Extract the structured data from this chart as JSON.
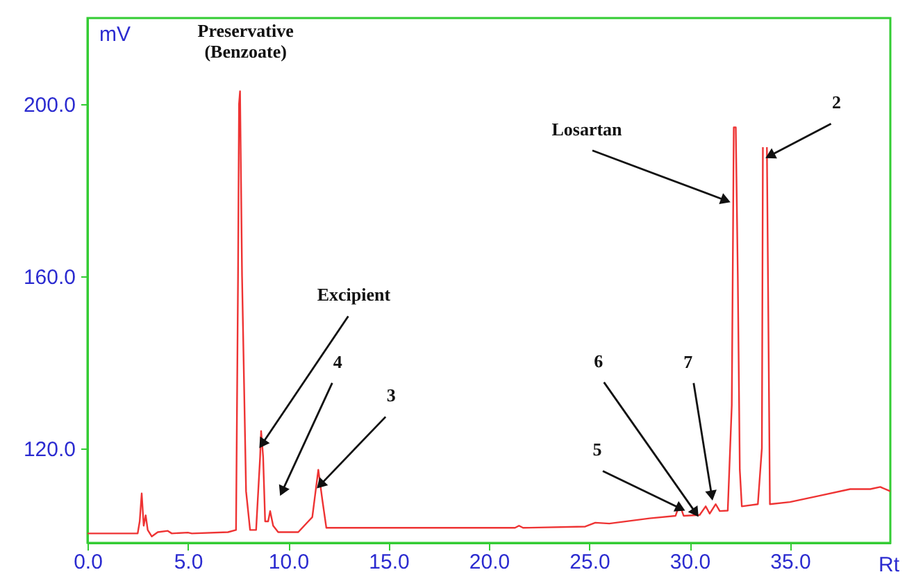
{
  "chart_data": {
    "type": "line",
    "xlabel": "Rt",
    "ylabel": "mV",
    "xlim": [
      0,
      40
    ],
    "ylim": [
      98,
      220
    ],
    "xticks": [
      {
        "value": 0,
        "label": "0.0"
      },
      {
        "value": 5,
        "label": "5.0"
      },
      {
        "value": 10,
        "label": "10.0"
      },
      {
        "value": 15,
        "label": "15.0"
      },
      {
        "value": 20,
        "label": "20.0"
      },
      {
        "value": 25,
        "label": "25.0"
      },
      {
        "value": 30,
        "label": "30.0"
      },
      {
        "value": 35,
        "label": "35.0"
      }
    ],
    "yticks": [
      {
        "value": 120,
        "label": "120.0"
      },
      {
        "value": 160,
        "label": "160.0"
      },
      {
        "value": 200,
        "label": "200.0"
      }
    ],
    "grid": false,
    "marker": "none",
    "line_style": "solid",
    "x": [
      0,
      2.5,
      2.6,
      2.7,
      2.8,
      2.9,
      3.0,
      3.2,
      3.5,
      4.0,
      4.2,
      5.0,
      5.2,
      7.0,
      7.4,
      7.5,
      7.55,
      7.6,
      7.7,
      7.8,
      7.9,
      8.1,
      8.4,
      8.6,
      8.65,
      8.75,
      8.85,
      9.0,
      9.1,
      9.25,
      9.5,
      10,
      10.5,
      11,
      11.2,
      11.5,
      11.7,
      11.9,
      13,
      16,
      21.3,
      21.5,
      21.7,
      24.8,
      25.3,
      26,
      28,
      29.3,
      29.5,
      29.7,
      30.5,
      30.8,
      31.0,
      31.3,
      31.5,
      31.9,
      32.1,
      32.2,
      32.3,
      32.4,
      32.5,
      32.6,
      33.4,
      33.6,
      33.65,
      33.7,
      33.8,
      33.85,
      34.0,
      35,
      36.5,
      38,
      39,
      39.5,
      40
    ],
    "series": [
      {
        "color": "#ee3333",
        "values": [
          100.2,
          100.2,
          103,
          109.5,
          102,
          104.4,
          101,
          99.5,
          100.5,
          100.8,
          100.2,
          100.4,
          100.2,
          100.5,
          101,
          160,
          200,
          203,
          160,
          135,
          110,
          101,
          101,
          118,
          124,
          118,
          103,
          103,
          105.4,
          102,
          100.5,
          100.5,
          100.5,
          103,
          104,
          115,
          108,
          101.5,
          101.5,
          101.5,
          101.5,
          102,
          101.5,
          101.8,
          102.7,
          102.5,
          103.7,
          104.3,
          107,
          104.3,
          104.5,
          106.5,
          104.8,
          107,
          105.4,
          105.5,
          130,
          194.6,
          194.6,
          160,
          115,
          106.5,
          107,
          120,
          190,
          null,
          null,
          190,
          107,
          107.5,
          109,
          110.5,
          110.5,
          111,
          110
        ]
      }
    ],
    "annotations": [
      {
        "text": "Preservative\n(Benzoate)",
        "x": 7.6,
        "y": 203
      },
      {
        "text": "Excipient",
        "x": 8.7,
        "y": 121
      },
      {
        "text": "4",
        "x": 9.7,
        "y": 110
      },
      {
        "text": "3",
        "x": 11.6,
        "y": 111.5
      },
      {
        "text": "5",
        "x": 29.55,
        "y": 106
      },
      {
        "text": "6",
        "x": 30.3,
        "y": 105
      },
      {
        "text": "7",
        "x": 31.1,
        "y": 109
      },
      {
        "text": "Losartan",
        "x": 31.8,
        "y": 177.6
      },
      {
        "text": "2",
        "x": 34.0,
        "y": 188
      }
    ]
  }
}
